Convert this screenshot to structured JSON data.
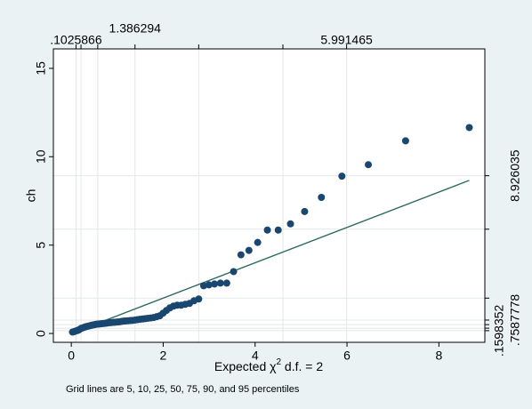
{
  "chart_data": {
    "type": "scatter",
    "x_label": "Expected χ",
    "x_label_sup": "2",
    "x_label_rest": " d.f. = 2",
    "y_label": "ch",
    "note": "Grid lines are 5, 10, 25, 50, 75, 90, and 95 percentiles",
    "color": "#1a476f",
    "x": [
      0.0265,
      0.053,
      0.08,
      0.108,
      0.136,
      0.164,
      0.193,
      0.222,
      0.252,
      0.282,
      0.313,
      0.344,
      0.375,
      0.407,
      0.44,
      0.473,
      0.506,
      0.541,
      0.575,
      0.611,
      0.647,
      0.683,
      0.721,
      0.759,
      0.798,
      0.837,
      0.878,
      0.919,
      0.961,
      1.004,
      1.048,
      1.093,
      1.139,
      1.186,
      1.234,
      1.284,
      1.334,
      1.386,
      1.44,
      1.494,
      1.551,
      1.609,
      1.668,
      1.73,
      1.793,
      1.859,
      1.927,
      1.997,
      2.07,
      2.145,
      2.224,
      2.305,
      2.39,
      2.479,
      2.572,
      2.67,
      2.773,
      2.881,
      2.995,
      3.116,
      3.245,
      3.383,
      3.532,
      3.692,
      3.866,
      4.056,
      4.267,
      4.503,
      4.77,
      5.078,
      5.443,
      5.889,
      6.464,
      7.275,
      8.661
    ],
    "values": [
      0.08,
      0.1,
      0.12,
      0.15,
      0.17,
      0.2,
      0.25,
      0.3,
      0.32,
      0.35,
      0.38,
      0.4,
      0.42,
      0.44,
      0.46,
      0.48,
      0.5,
      0.52,
      0.53,
      0.54,
      0.55,
      0.56,
      0.57,
      0.58,
      0.6,
      0.61,
      0.62,
      0.63,
      0.64,
      0.65,
      0.66,
      0.68,
      0.7,
      0.71,
      0.72,
      0.73,
      0.74,
      0.76,
      0.78,
      0.8,
      0.82,
      0.84,
      0.86,
      0.88,
      0.9,
      0.95,
      1.0,
      1.15,
      1.3,
      1.45,
      1.55,
      1.6,
      1.6,
      1.65,
      1.7,
      1.85,
      1.95,
      2.7,
      2.75,
      2.8,
      2.85,
      2.85,
      3.5,
      4.45,
      4.7,
      5.15,
      5.85,
      5.85,
      6.2,
      6.9,
      7.7,
      8.9,
      9.55,
      10.9,
      11.65
    ],
    "reference_line": {
      "x": [
        0.0265,
        8.661
      ],
      "values": [
        0.0265,
        8.661
      ],
      "color": "#2e6b5e"
    },
    "xlim": [
      -0.39,
      9.0
    ],
    "ylim": [
      -0.5,
      16.1
    ],
    "xticks": [
      0,
      2,
      4,
      6,
      8
    ],
    "yticks": [
      0,
      5,
      10,
      15
    ],
    "top_ticks": [
      {
        "value": 0.1025866,
        "label": ".1025866"
      },
      0.2107,
      0.5754,
      {
        "value": 1.386294,
        "label": "1.386294"
      },
      2.7726,
      4.6052,
      {
        "value": 5.991465,
        "label": "5.991465"
      }
    ],
    "right_ticks": [
      {
        "value": 0.1598352,
        "label": ".1598352"
      },
      0.3,
      0.5,
      {
        "value": 0.7587778,
        "label": ".7587778"
      },
      2.0,
      5.9,
      {
        "value": 8.926035,
        "label": "8.926035"
      }
    ],
    "grid": true
  }
}
